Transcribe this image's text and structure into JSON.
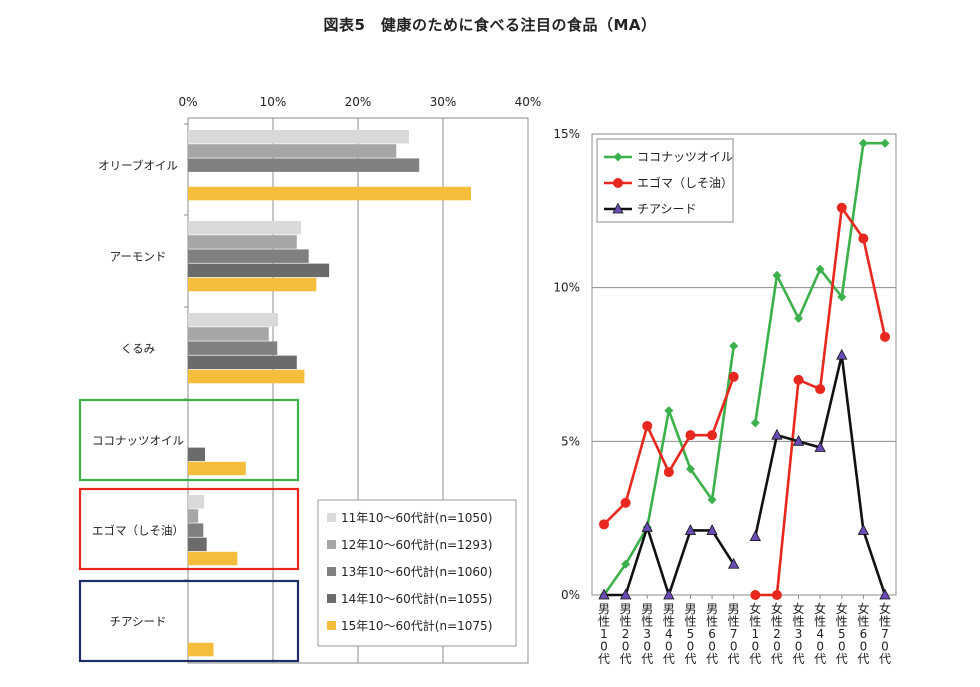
{
  "title": "図表5　健康のために食べる注目の食品（MA）",
  "colors": {
    "series_bars": [
      "#d9d9d9",
      "#a6a6a6",
      "#808080",
      "#6b6b6b",
      "#f5bd3c"
    ],
    "coconut": "#3cb04b",
    "egoma": "#e8281e",
    "chia": "#111111",
    "chia_marker": "#6a4bb5",
    "box_coconut": "#3cb04b",
    "box_egoma": "#e8281e",
    "box_chia": "#1f2d6b"
  },
  "chart_data": [
    {
      "type": "bar",
      "orientation": "horizontal",
      "categories": [
        "オリーブオイル",
        "アーモンド",
        "くるみ",
        "ココナッツオイル",
        "エゴマ（しそ油）",
        "チアシード"
      ],
      "series": [
        {
          "name": "11年10～60代計(n=1050)",
          "values": [
            26,
            13.3,
            10.6,
            0,
            1.9,
            0
          ]
        },
        {
          "name": "12年10～60代計(n=1293)",
          "values": [
            24.5,
            12.8,
            9.5,
            0,
            1.2,
            0
          ]
        },
        {
          "name": "13年10～60代計(n=1060)",
          "values": [
            27.2,
            14.2,
            10.5,
            0,
            1.8,
            0
          ]
        },
        {
          "name": "14年10～60代計(n=1055)",
          "values": [
            0,
            16.6,
            12.8,
            2.0,
            2.2,
            0
          ]
        },
        {
          "name": "15年10～60代計(n=1075)",
          "values": [
            33.3,
            15.1,
            13.7,
            6.8,
            5.8,
            3.0
          ]
        }
      ],
      "x_ticks": [
        "0%",
        "10%",
        "20%",
        "30%",
        "40%"
      ],
      "xlim": [
        0,
        40
      ],
      "grid": true,
      "legend_position": "bottom-right"
    },
    {
      "type": "line",
      "categories": [
        "男性10代",
        "男性20代",
        "男性30代",
        "男性40代",
        "男性50代",
        "男性60代",
        "男性70代",
        "女性10代",
        "女性20代",
        "女性30代",
        "女性40代",
        "女性50代",
        "女性60代",
        "女性70代"
      ],
      "category_labels": [
        "男\n性\n1\n0\n代",
        "男\n性\n2\n0\n代",
        "男\n性\n3\n0\n代",
        "男\n性\n4\n0\n代",
        "男\n性\n5\n0\n代",
        "男\n性\n6\n0\n代",
        "男\n性\n7\n0\n代",
        "女\n性\n1\n0\n代",
        "女\n性\n2\n0\n代",
        "女\n性\n3\n0\n代",
        "女\n性\n4\n0\n代",
        "女\n性\n5\n0\n代",
        "女\n性\n6\n0\n代",
        "女\n性\n7\n0\n代"
      ],
      "series": [
        {
          "name": "ココナッツオイル",
          "values": [
            0,
            1.0,
            2.2,
            6.0,
            4.1,
            3.1,
            8.1,
            5.6,
            10.4,
            9.0,
            10.6,
            9.7,
            14.7,
            14.7
          ]
        },
        {
          "name": "エゴマ（しそ油）",
          "values": [
            2.3,
            3.0,
            5.5,
            4.0,
            5.2,
            5.2,
            7.1,
            0,
            0,
            7.0,
            6.7,
            12.6,
            11.6,
            8.4
          ]
        },
        {
          "name": "チアシード",
          "values": [
            0,
            0,
            2.2,
            0,
            2.1,
            2.1,
            1.0,
            1.9,
            5.2,
            5.0,
            4.8,
            7.8,
            2.1,
            0
          ]
        }
      ],
      "y_ticks": [
        "0%",
        "5%",
        "10%",
        "15%"
      ],
      "ylim": [
        0,
        15
      ],
      "grid": true,
      "legend_position": "top-left"
    }
  ]
}
